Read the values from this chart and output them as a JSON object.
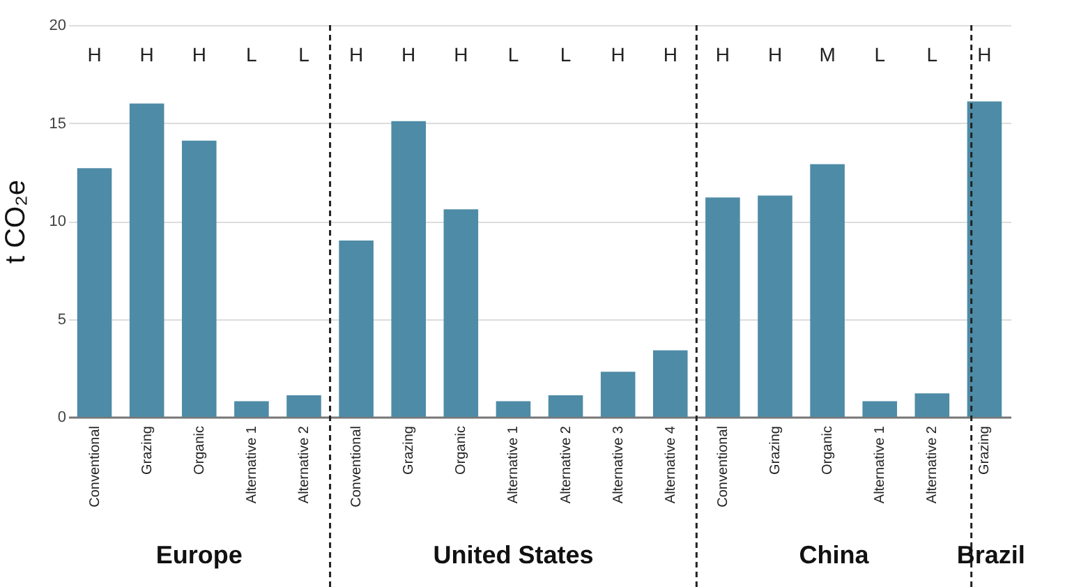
{
  "chart_data": {
    "type": "bar",
    "ylabel": "t CO₂e",
    "categories": [
      "Conventional",
      "Grazing",
      "Organic",
      "Alternative 1",
      "Alternative 2",
      "Conventional",
      "Grazing",
      "Organic",
      "Alternative 1",
      "Alternative 2",
      "Alternative 3",
      "Alternative 4",
      "Conventional",
      "Grazing",
      "Organic",
      "Alternative 1",
      "Alternative 2",
      "Grazing"
    ],
    "values": [
      12.7,
      16.0,
      14.1,
      0.8,
      1.1,
      9.0,
      15.1,
      10.6,
      0.8,
      1.1,
      2.3,
      3.4,
      11.2,
      11.3,
      12.9,
      0.8,
      1.2,
      16.1
    ],
    "color": "#4e8ba6",
    "ylim": [
      0,
      20
    ],
    "yticks": [
      0,
      5,
      10,
      15,
      20
    ],
    "grid": "y",
    "annotations": [
      "H",
      "H",
      "H",
      "L",
      "L",
      "H",
      "H",
      "H",
      "L",
      "L",
      "H",
      "H",
      "H",
      "H",
      "M",
      "L",
      "L",
      "H",
      "Europe",
      "United States",
      "China",
      "Brazil"
    ]
  }
}
